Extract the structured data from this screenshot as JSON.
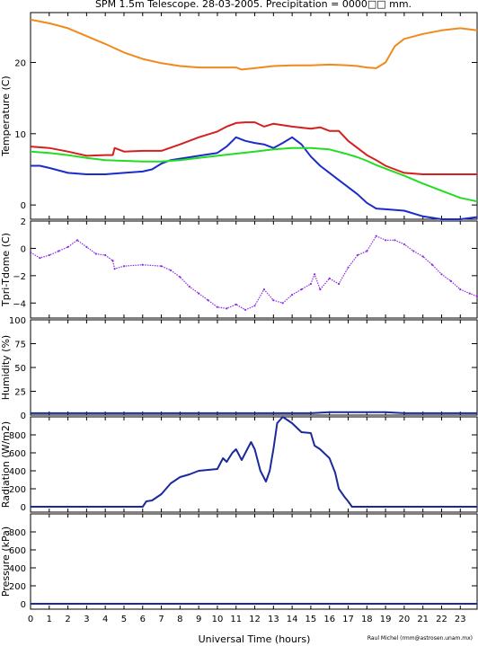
{
  "title": "SPM 1.5m Telescope. 28-03-2005. Precipitation = 0000□□ mm.",
  "xlabel": "Universal Time (hours)",
  "credit": "Raul Michel (rmm@astrosen.unam.mx)",
  "x_ticks": [
    "0",
    "1",
    "2",
    "3",
    "4",
    "5",
    "6",
    "7",
    "8",
    "9",
    "10",
    "11",
    "12",
    "13",
    "14",
    "15",
    "16",
    "17",
    "18",
    "19",
    "20",
    "21",
    "22",
    "23"
  ],
  "colors": {
    "orange": "#f08a1c",
    "red": "#d42020",
    "blue": "#1c2cc8",
    "green": "#22dd22",
    "purple": "#8a2be2",
    "navy": "#1a2a9a"
  },
  "chart_data": [
    {
      "type": "line",
      "ylabel": "Temperature (C)",
      "xlim": [
        0,
        23.9
      ],
      "ylim": [
        -2,
        27
      ],
      "y_ticks": [
        0,
        10,
        20
      ],
      "y_tick_labels": [
        "0",
        "10",
        "20"
      ],
      "series": [
        {
          "color": "orange",
          "x": [
            0,
            1,
            2,
            3,
            4,
            5,
            6,
            7,
            8,
            9,
            10,
            11,
            11.3,
            12,
            13,
            14,
            15,
            16,
            17,
            17.5,
            18,
            18.5,
            19,
            19.5,
            20,
            21,
            22,
            23,
            23.9
          ],
          "y": [
            26,
            25.5,
            24.8,
            23.7,
            22.6,
            21.4,
            20.5,
            19.9,
            19.5,
            19.3,
            19.3,
            19.3,
            19,
            19.2,
            19.5,
            19.6,
            19.6,
            19.7,
            19.6,
            19.5,
            19.3,
            19.2,
            20,
            22.3,
            23.3,
            24,
            24.5,
            24.8,
            24.5
          ]
        },
        {
          "color": "red",
          "x": [
            0,
            1,
            2,
            3,
            4,
            4.4,
            4.5,
            5,
            6,
            7,
            8,
            9,
            10,
            10.5,
            11,
            11.5,
            12,
            12.5,
            13,
            14,
            15,
            15.5,
            16,
            16.5,
            17,
            17.5,
            18,
            18.5,
            19,
            19.5,
            20,
            21,
            22,
            23,
            23.9
          ],
          "y": [
            8.2,
            8,
            7.5,
            6.9,
            7,
            7,
            8,
            7.5,
            7.6,
            7.6,
            8.5,
            9.5,
            10.3,
            11,
            11.5,
            11.6,
            11.6,
            11,
            11.4,
            11,
            10.7,
            10.9,
            10.4,
            10.4,
            9,
            8,
            7,
            6.3,
            5.5,
            5,
            4.5,
            4.3,
            4.3,
            4.3,
            4.3
          ]
        },
        {
          "color": "blue",
          "x": [
            0,
            0.5,
            1,
            2,
            3,
            4,
            5,
            6,
            6.5,
            7,
            7.5,
            8,
            9,
            10,
            10.5,
            11,
            11.5,
            12,
            12.5,
            13,
            13.5,
            14,
            14.5,
            15,
            15.5,
            16,
            16.5,
            17,
            17.5,
            18,
            18.5,
            19,
            20,
            21,
            22,
            23,
            23.9
          ],
          "y": [
            5.5,
            5.5,
            5.2,
            4.5,
            4.3,
            4.3,
            4.5,
            4.7,
            5,
            5.8,
            6.3,
            6.5,
            6.9,
            7.3,
            8.2,
            9.5,
            9,
            8.7,
            8.5,
            8,
            8.7,
            9.5,
            8.5,
            6.8,
            5.5,
            4.5,
            3.5,
            2.5,
            1.5,
            0.3,
            -0.5,
            -0.6,
            -0.8,
            -1.6,
            -2,
            -2,
            -1.7
          ]
        },
        {
          "color": "green",
          "x": [
            0,
            1,
            2,
            3,
            4,
            5,
            6,
            7,
            8,
            9,
            10,
            11,
            12,
            13,
            14,
            15,
            16,
            17,
            17.5,
            18,
            18.5,
            19,
            20,
            21,
            22,
            23,
            23.9
          ],
          "y": [
            7.5,
            7.3,
            7,
            6.6,
            6.3,
            6.2,
            6.1,
            6.1,
            6.3,
            6.6,
            6.9,
            7.2,
            7.5,
            7.8,
            8,
            8,
            7.8,
            7.1,
            6.7,
            6.2,
            5.6,
            5.1,
            4.1,
            3,
            2,
            1,
            0.5
          ]
        }
      ]
    },
    {
      "type": "scatter",
      "ylabel": "Tpri-Tdome (C)",
      "xlim": [
        0,
        23.9
      ],
      "ylim": [
        -5.1,
        2
      ],
      "y_ticks": [
        -4,
        -2,
        0,
        2
      ],
      "y_tick_labels": [
        "−4",
        "−2",
        "0",
        "2"
      ],
      "series": [
        {
          "color": "purple",
          "x": [
            0,
            0.5,
            1,
            1.5,
            2,
            2.5,
            3,
            3.5,
            4,
            4.4,
            4.5,
            5,
            6,
            7,
            7.5,
            8,
            8.5,
            9,
            9.5,
            10,
            10.5,
            11,
            11.5,
            12,
            12.5,
            13,
            13.5,
            14,
            14.5,
            15,
            15.2,
            15.5,
            16,
            16.5,
            17,
            17.5,
            18,
            18.5,
            19,
            19.5,
            20,
            20.5,
            21,
            21.5,
            22,
            22.5,
            23,
            23.5,
            23.9
          ],
          "y": [
            -0.3,
            -0.7,
            -0.5,
            -0.2,
            0.1,
            0.6,
            0.1,
            -0.4,
            -0.5,
            -0.9,
            -1.5,
            -1.3,
            -1.2,
            -1.3,
            -1.6,
            -2.1,
            -2.8,
            -3.3,
            -3.8,
            -4.3,
            -4.4,
            -4.1,
            -4.5,
            -4.2,
            -3,
            -3.8,
            -4,
            -3.4,
            -3,
            -2.6,
            -1.9,
            -3,
            -2.2,
            -2.6,
            -1.4,
            -0.5,
            -0.2,
            0.9,
            0.6,
            0.6,
            0.3,
            -0.2,
            -0.6,
            -1.2,
            -1.9,
            -2.4,
            -3,
            -3.3,
            -3.5
          ]
        }
      ]
    },
    {
      "type": "line",
      "ylabel": "Humidity (%)",
      "xlim": [
        0,
        23.9
      ],
      "ylim": [
        0,
        100
      ],
      "y_ticks": [
        0,
        25,
        50,
        75,
        100
      ],
      "y_tick_labels": [
        "0",
        "25",
        "50",
        "75",
        "100"
      ],
      "series": [
        {
          "color": "navy",
          "x": [
            0,
            5,
            10,
            15,
            16,
            18,
            19,
            20,
            23.9
          ],
          "y": [
            2,
            2,
            2,
            2,
            3,
            3,
            3,
            2,
            2
          ]
        }
      ]
    },
    {
      "type": "line",
      "ylabel": "Radiation (W/m2)",
      "xlim": [
        0,
        23.9
      ],
      "ylim": [
        -60,
        1000
      ],
      "y_ticks": [
        0,
        200,
        400,
        600,
        800
      ],
      "y_tick_labels": [
        "0",
        "200",
        "400",
        "600",
        "800"
      ],
      "series": [
        {
          "color": "navy",
          "x": [
            0,
            6,
            6.2,
            6.5,
            7,
            7.5,
            8,
            8.5,
            9,
            9.5,
            10,
            10.3,
            10.5,
            10.8,
            11,
            11.3,
            11.6,
            11.8,
            12,
            12.3,
            12.6,
            12.8,
            13,
            13.2,
            13.5,
            14,
            14.5,
            15,
            15.2,
            15.5,
            16,
            16.3,
            16.5,
            16.8,
            17,
            17.2,
            18,
            23.9
          ],
          "y": [
            0,
            0,
            60,
            70,
            140,
            260,
            330,
            360,
            400,
            410,
            420,
            540,
            500,
            600,
            640,
            520,
            640,
            720,
            640,
            400,
            280,
            400,
            640,
            930,
            1000,
            930,
            830,
            820,
            680,
            640,
            540,
            380,
            200,
            110,
            60,
            0,
            0,
            0
          ]
        }
      ]
    },
    {
      "type": "line",
      "ylabel": "Pressure (kPa)",
      "xlim": [
        0,
        23.9
      ],
      "ylim": [
        -60,
        1000
      ],
      "y_ticks": [
        0,
        200,
        400,
        600,
        800
      ],
      "y_tick_labels": [
        "0",
        "200",
        "400",
        "600",
        "800"
      ],
      "series": [
        {
          "color": "navy",
          "x": [
            0,
            23.9
          ],
          "y": [
            0,
            0
          ]
        }
      ]
    }
  ]
}
